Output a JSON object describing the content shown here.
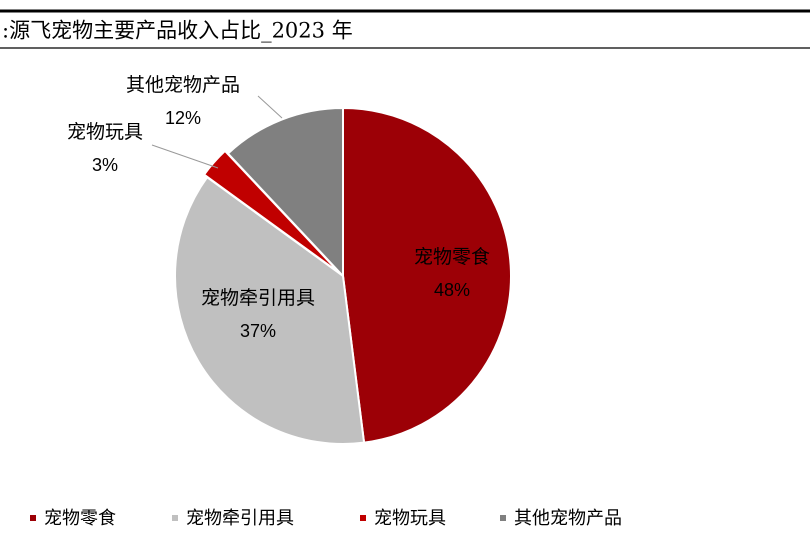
{
  "chart_data": {
    "type": "pie",
    "title": ":源飞宠物主要产品收入占比_2023 年",
    "categories": [
      "宠物零食",
      "宠物牵引用具",
      "宠物玩具",
      "其他宠物产品"
    ],
    "values": [
      48,
      37,
      3,
      12
    ],
    "value_labels": [
      "48%",
      "37%",
      "3%",
      "12%"
    ],
    "colors": [
      "#9c0006",
      "#c0c0c0",
      "#c00000",
      "#808080"
    ],
    "legend": "bottom"
  }
}
